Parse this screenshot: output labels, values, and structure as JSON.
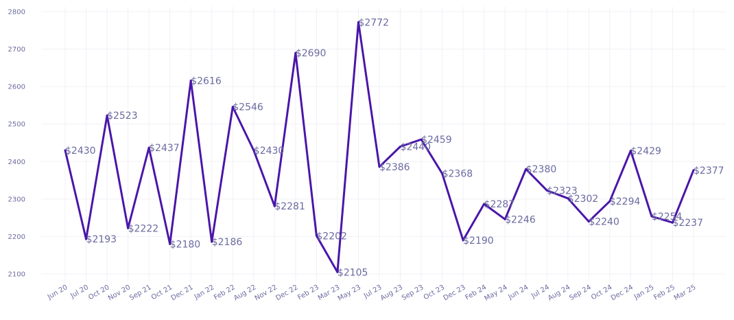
{
  "chart_data": {
    "type": "line",
    "title": "",
    "xlabel": "",
    "ylabel": "",
    "categories": [
      "Jun 20",
      "Jul 20",
      "Oct 20",
      "Nov 20",
      "Sep 21",
      "Oct 21",
      "Dec 21",
      "Jan 22",
      "Feb 22",
      "Aug 22",
      "Nov 22",
      "Dec 22",
      "Feb 23",
      "Mar 23",
      "May 23",
      "Jul 23",
      "Aug 23",
      "Sep 23",
      "Oct 23",
      "Dec 23",
      "Feb 24",
      "May 24",
      "Jun 24",
      "Jul 24",
      "Aug 24",
      "Sep 24",
      "Oct 24",
      "Dec 24",
      "Jan 25",
      "Feb 25",
      "Mar 25"
    ],
    "series": [
      {
        "values": [
          2430,
          2193,
          2523,
          2222,
          2437,
          2180,
          2616,
          2186,
          2546,
          2430,
          2281,
          2690,
          2202,
          2105,
          2772,
          2386,
          2440,
          2459,
          2368,
          2190,
          2287,
          2246,
          2380,
          2323,
          2302,
          2240,
          2294,
          2429,
          2254,
          2237,
          2377
        ],
        "labels": [
          "$2430",
          "$2193",
          "$2523",
          "$2222",
          "$2437",
          "$2180",
          "$2616",
          "$2186",
          "$2546",
          "$2430",
          "$2281",
          "$2690",
          "$2202",
          "$2105",
          "$2772",
          "$2386",
          "$2440",
          "$2459",
          "$2368",
          "$2190",
          "$2287",
          "$2246",
          "$2380",
          "$2323",
          "$2302",
          "$2240",
          "$2294",
          "$2429",
          "$2254",
          "$2237",
          "$2377"
        ],
        "color": "#4a16a8"
      }
    ],
    "yticks": [
      "2100",
      "2200",
      "2300",
      "2400",
      "2500",
      "2600",
      "2700",
      "2800"
    ],
    "ylim": [
      2080,
      2810
    ],
    "grid": true,
    "legend": "none"
  }
}
